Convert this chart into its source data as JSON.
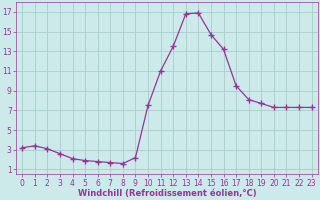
{
  "x": [
    0,
    1,
    2,
    3,
    4,
    5,
    6,
    7,
    8,
    9,
    10,
    11,
    12,
    13,
    14,
    15,
    16,
    17,
    18,
    19,
    20,
    21,
    22,
    23
  ],
  "y": [
    3.2,
    3.4,
    3.1,
    2.6,
    2.1,
    1.9,
    1.8,
    1.7,
    1.6,
    2.2,
    7.5,
    11.0,
    13.5,
    16.8,
    16.9,
    14.7,
    13.2,
    9.5,
    8.1,
    7.7,
    7.3,
    7.3,
    7.3,
    7.3
  ],
  "line_color": "#993399",
  "marker": "+",
  "marker_size": 4,
  "marker_lw": 1.0,
  "bg_color": "#cceaea",
  "grid_color": "#aacccc",
  "xlabel": "Windchill (Refroidissement éolien,°C)",
  "xlabel_color": "#993399",
  "xlabel_fontsize": 6.0,
  "tick_color": "#993399",
  "tick_fontsize": 5.5,
  "yticks": [
    1,
    3,
    5,
    7,
    9,
    11,
    13,
    15,
    17
  ],
  "ylim": [
    0.5,
    18.0
  ],
  "xlim": [
    -0.5,
    23.5
  ],
  "xticks": [
    0,
    1,
    2,
    3,
    4,
    5,
    6,
    7,
    8,
    9,
    10,
    11,
    12,
    13,
    14,
    15,
    16,
    17,
    18,
    19,
    20,
    21,
    22,
    23
  ],
  "linewidth": 0.9
}
